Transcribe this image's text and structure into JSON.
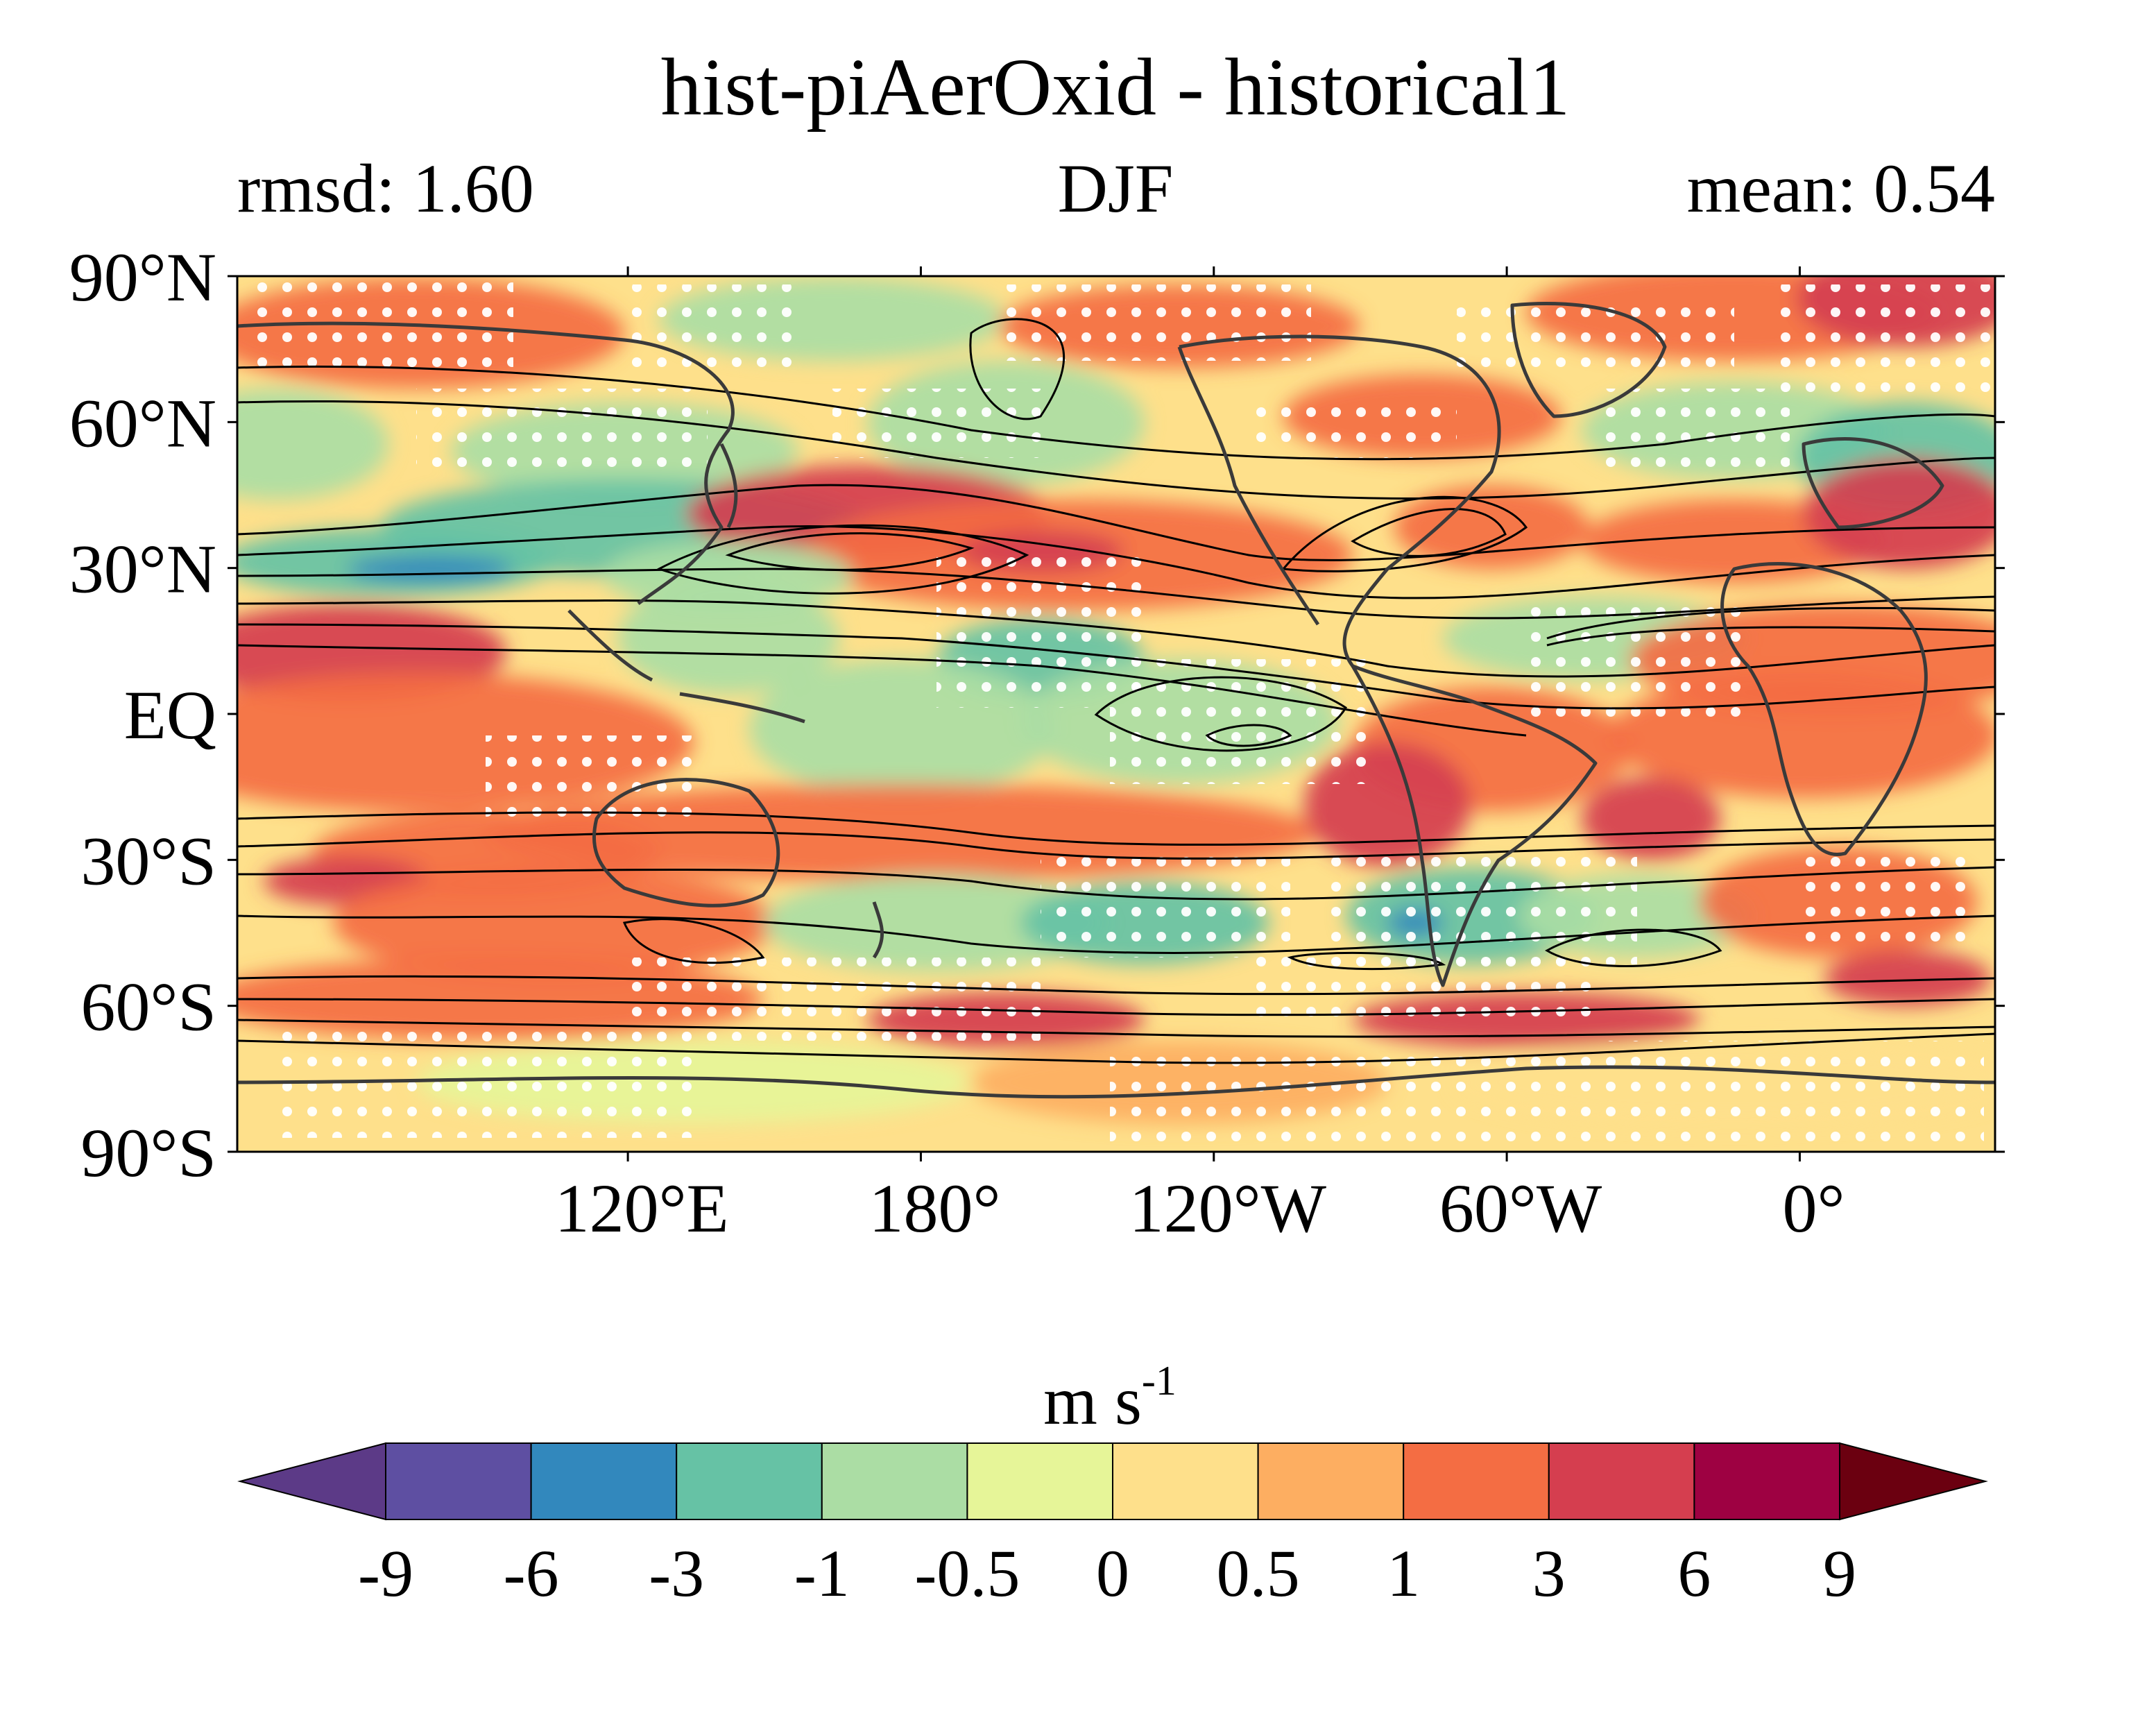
{
  "figure": {
    "title": "hist-piAerOxid - historical1",
    "left_label": "rmsd: 1.60",
    "center_label": "DJF",
    "right_label": "mean: 0.54"
  },
  "map": {
    "lat_ticks": [
      "90°N",
      "60°N",
      "30°N",
      "EQ",
      "30°S",
      "60°S",
      "90°S"
    ],
    "lon_ticks": [
      "120°E",
      "180°",
      "120°W",
      "60°W",
      "0°"
    ],
    "lon_range": [
      40,
      400
    ],
    "lat_range": [
      -90,
      90
    ]
  },
  "colorbar": {
    "unit": "m s",
    "unit_sup": "-1",
    "boundaries": [
      "-9",
      "-6",
      "-3",
      "-1",
      "-0.5",
      "0",
      "0.5",
      "1",
      "3",
      "6",
      "9"
    ],
    "colors": [
      "#5e4fa2",
      "#3288bd",
      "#66c2a5",
      "#abdda4",
      "#e6f598",
      "#fee08b",
      "#fdae61",
      "#f46d43",
      "#d53e4f",
      "#9e0142"
    ],
    "under_color": "#5c3a87",
    "over_color": "#6b0010"
  }
}
